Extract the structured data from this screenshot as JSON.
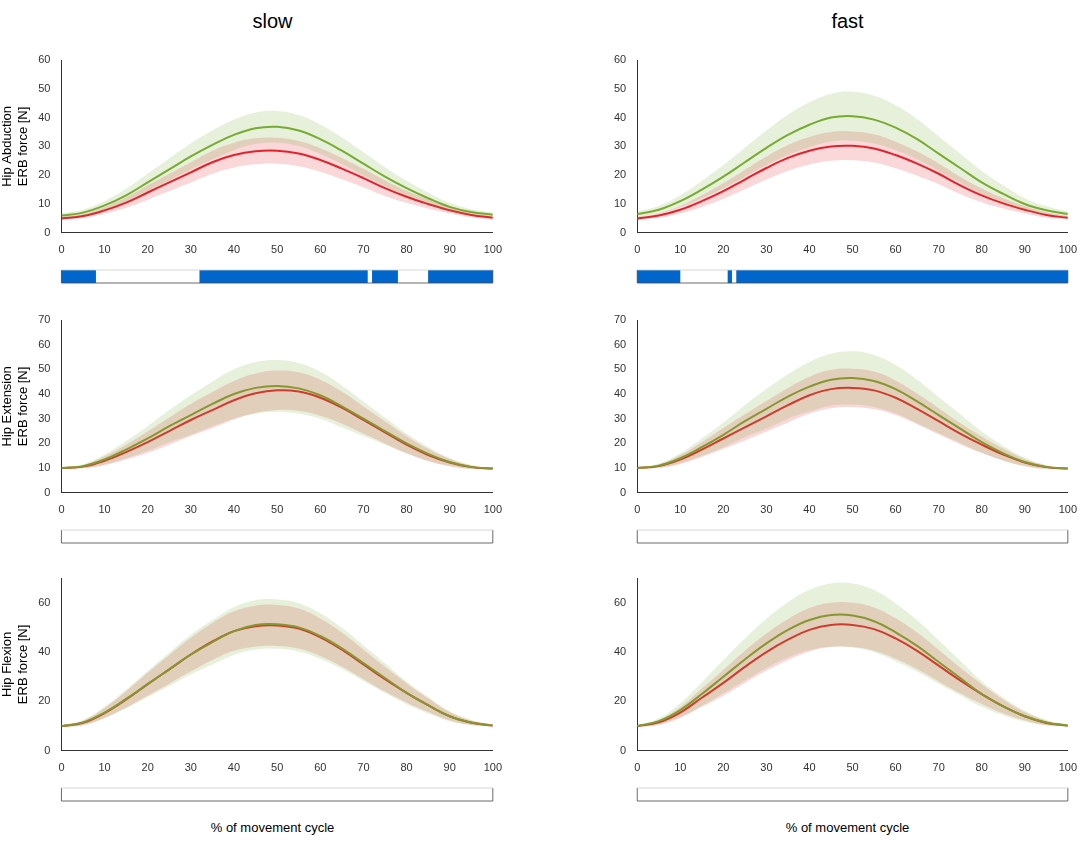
{
  "chart_data": [
    {
      "type": "line",
      "title": "slow",
      "y_label": [
        "Hip Abduction",
        "ERB force [N]"
      ],
      "xlim": [
        0,
        100
      ],
      "xticks": [
        0,
        10,
        20,
        30,
        40,
        50,
        60,
        70,
        80,
        90,
        100
      ],
      "ylim": [
        0,
        60
      ],
      "yticks": [
        0,
        10,
        20,
        30,
        40,
        50,
        60
      ],
      "grid": false,
      "x": [
        0,
        5,
        10,
        15,
        20,
        25,
        30,
        35,
        40,
        45,
        50,
        55,
        60,
        65,
        70,
        75,
        80,
        85,
        90,
        95,
        100
      ],
      "series": [
        {
          "color": "#77ac30",
          "values": [
            6,
            7,
            9.5,
            13,
            17.5,
            22,
            26.5,
            30.5,
            34,
            36.3,
            36.8,
            35.5,
            32.5,
            28.5,
            24,
            19.5,
            15.5,
            12,
            9,
            7.2,
            6.3
          ],
          "sd": [
            0.8,
            1,
            1.5,
            2.3,
            3,
            3.8,
            4.5,
            5,
            5.3,
            5.5,
            5.5,
            5.4,
            5.1,
            4.6,
            4,
            3.3,
            2.6,
            2,
            1.4,
            1,
            0.8
          ]
        },
        {
          "color": "#e3242b",
          "values": [
            5,
            5.8,
            7.8,
            10.5,
            14,
            17.5,
            21,
            24.5,
            27,
            28.3,
            28.5,
            27.5,
            25.3,
            22.3,
            19,
            15.5,
            12.5,
            10,
            7.8,
            6.2,
            5.2
          ],
          "sd": [
            0.5,
            0.7,
            1.2,
            1.8,
            2.5,
            3,
            3.5,
            4,
            4.3,
            4.5,
            4.5,
            4.4,
            4.1,
            3.7,
            3.2,
            2.7,
            2.1,
            1.6,
            1.1,
            0.8,
            0.6
          ]
        }
      ],
      "significance": [
        [
          0,
          8
        ],
        [
          32,
          71
        ],
        [
          72,
          78
        ],
        [
          85,
          100
        ]
      ]
    },
    {
      "type": "line",
      "title": "fast",
      "y_label": [],
      "xlim": [
        0,
        100
      ],
      "xticks": [
        0,
        10,
        20,
        30,
        40,
        50,
        60,
        70,
        80,
        90,
        100
      ],
      "ylim": [
        0,
        60
      ],
      "yticks": [
        0,
        10,
        20,
        30,
        40,
        50,
        60
      ],
      "grid": false,
      "x": [
        0,
        5,
        10,
        15,
        20,
        25,
        30,
        35,
        40,
        45,
        50,
        55,
        60,
        65,
        70,
        75,
        80,
        85,
        90,
        95,
        100
      ],
      "series": [
        {
          "color": "#77ac30",
          "values": [
            6.5,
            8,
            11,
            15,
            19.5,
            24.5,
            29.5,
            34,
            37.5,
            40,
            40.5,
            39.3,
            36.5,
            32.5,
            27.5,
            22.5,
            17.5,
            13.5,
            10,
            7.8,
            6.5
          ],
          "sd": [
            1,
            1.3,
            2,
            3,
            4,
            5,
            6,
            7,
            7.8,
            8.3,
            8.5,
            8.3,
            7.8,
            7,
            6,
            5,
            4,
            3,
            2,
            1.4,
            1
          ]
        },
        {
          "color": "#e3242b",
          "values": [
            5,
            6,
            8,
            11,
            14.5,
            18.5,
            22.5,
            26,
            28.5,
            30,
            30.2,
            29.3,
            27,
            24,
            20.5,
            16.5,
            13,
            10.2,
            8,
            6.2,
            5.2
          ],
          "sd": [
            0.6,
            0.8,
            1.3,
            2,
            2.7,
            3.4,
            4,
            4.5,
            4.8,
            5,
            5,
            4.9,
            4.6,
            4.2,
            3.6,
            3,
            2.4,
            1.8,
            1.3,
            0.9,
            0.6
          ]
        }
      ],
      "significance": [
        [
          0,
          10
        ],
        [
          21,
          22
        ],
        [
          23,
          100
        ]
      ]
    },
    {
      "type": "line",
      "y_label": [
        "Hip Extension",
        "ERB force [N]"
      ],
      "xlim": [
        0,
        100
      ],
      "xticks": [
        0,
        10,
        20,
        30,
        40,
        50,
        60,
        70,
        80,
        90,
        100
      ],
      "ylim": [
        0,
        70
      ],
      "yticks": [
        0,
        10,
        20,
        30,
        40,
        50,
        60,
        70
      ],
      "grid": false,
      "x": [
        0,
        5,
        10,
        15,
        20,
        25,
        30,
        35,
        40,
        45,
        50,
        55,
        60,
        65,
        70,
        75,
        80,
        85,
        90,
        95,
        100
      ],
      "series": [
        {
          "color": "#77ac30",
          "values": [
            10,
            10.8,
            13.5,
            17.5,
            22,
            27,
            31.5,
            36,
            40,
            42.5,
            43.3,
            42.3,
            39.5,
            35,
            30,
            25,
            20,
            15.8,
            12.5,
            10.5,
            9.8
          ],
          "sd": [
            0.3,
            0.8,
            2,
            3.5,
            5,
            6.5,
            8,
            9,
            10,
            10.5,
            10.5,
            10.3,
            9.5,
            8.5,
            7,
            5.5,
            4,
            2.8,
            1.6,
            0.8,
            0.3
          ]
        },
        {
          "color": "#e3242b",
          "values": [
            10,
            10.6,
            13,
            16.5,
            20.5,
            25,
            29.5,
            33.5,
            37.5,
            40.3,
            41.5,
            41,
            38.5,
            34.5,
            29.5,
            24.5,
            19.5,
            15.3,
            12.3,
            10.4,
            9.8
          ],
          "sd": [
            0.3,
            0.7,
            1.8,
            3,
            4.3,
            5.5,
            6.5,
            7.3,
            7.8,
            8,
            8,
            7.8,
            7.3,
            6.5,
            5.5,
            4.5,
            3.5,
            2.5,
            1.5,
            0.7,
            0.3
          ]
        }
      ],
      "significance": []
    },
    {
      "type": "line",
      "y_label": [],
      "xlim": [
        0,
        100
      ],
      "xticks": [
        0,
        10,
        20,
        30,
        40,
        50,
        60,
        70,
        80,
        90,
        100
      ],
      "ylim": [
        0,
        70
      ],
      "yticks": [
        0,
        10,
        20,
        30,
        40,
        50,
        60,
        70
      ],
      "grid": false,
      "x": [
        0,
        5,
        10,
        15,
        20,
        25,
        30,
        35,
        40,
        45,
        50,
        55,
        60,
        65,
        70,
        75,
        80,
        85,
        90,
        95,
        100
      ],
      "series": [
        {
          "color": "#77ac30",
          "values": [
            10,
            11,
            14,
            18.5,
            23.5,
            29,
            34,
            39,
            43,
            45.8,
            46.5,
            45.3,
            42,
            37,
            31.5,
            26,
            20.5,
            16,
            12.5,
            10.5,
            9.8
          ],
          "sd": [
            0.3,
            0.8,
            2,
            3.5,
            5,
            6.5,
            8,
            9,
            10,
            10.5,
            10.8,
            10.5,
            9.8,
            8.8,
            7.3,
            5.8,
            4.3,
            3,
            1.8,
            0.8,
            0.3
          ]
        },
        {
          "color": "#e3242b",
          "values": [
            10,
            10.8,
            13.5,
            17.5,
            22,
            26.5,
            31,
            35.5,
            39.5,
            42,
            42.5,
            41.5,
            38.5,
            34,
            29,
            24,
            19.5,
            15.5,
            12.3,
            10.4,
            9.8
          ],
          "sd": [
            0.3,
            0.7,
            1.8,
            3,
            4.2,
            5.3,
            6.2,
            7,
            7.5,
            7.8,
            7.8,
            7.6,
            7,
            6.2,
            5.3,
            4.3,
            3.3,
            2.4,
            1.4,
            0.7,
            0.3
          ]
        }
      ],
      "significance": []
    },
    {
      "type": "line",
      "y_label": [
        "Hip Flexion",
        "ERB force [N]"
      ],
      "x_label": "% of movement cycle",
      "xlim": [
        0,
        100
      ],
      "xticks": [
        0,
        10,
        20,
        30,
        40,
        50,
        60,
        70,
        80,
        90,
        100
      ],
      "ylim": [
        0,
        70
      ],
      "yticks": [
        0,
        20,
        40,
        60
      ],
      "grid": false,
      "x": [
        0,
        5,
        10,
        15,
        20,
        25,
        30,
        35,
        40,
        45,
        50,
        55,
        60,
        65,
        70,
        75,
        80,
        85,
        90,
        95,
        100
      ],
      "series": [
        {
          "color": "#77ac30",
          "values": [
            10,
            11.5,
            15.5,
            21,
            27,
            33,
            39,
            44,
            48.5,
            51,
            51.3,
            50,
            46.5,
            41.5,
            35.5,
            29.5,
            23.5,
            18.5,
            14,
            11.5,
            10.3
          ],
          "sd": [
            0.3,
            1,
            2.3,
            3.8,
            5.3,
            6.8,
            8,
            9,
            9.7,
            10,
            10,
            9.8,
            9.2,
            8.3,
            7.2,
            6,
            4.6,
            3.3,
            2,
            1,
            0.3
          ]
        },
        {
          "color": "#e3242b",
          "values": [
            10,
            11.3,
            15.3,
            20.8,
            27,
            33,
            39,
            44.3,
            48.5,
            50.5,
            50.8,
            49.5,
            46,
            41,
            35,
            29,
            23.5,
            18.5,
            14,
            11.4,
            10.2
          ],
          "sd": [
            0.3,
            0.9,
            2,
            3.3,
            4.6,
            5.8,
            6.8,
            7.5,
            8,
            8.3,
            8.3,
            8.1,
            7.6,
            6.9,
            6,
            5,
            3.9,
            2.8,
            1.7,
            0.9,
            0.3
          ]
        }
      ],
      "significance": []
    },
    {
      "type": "line",
      "y_label": [],
      "x_label": "% of movement cycle",
      "xlim": [
        0,
        100
      ],
      "xticks": [
        0,
        10,
        20,
        30,
        40,
        50,
        60,
        70,
        80,
        90,
        100
      ],
      "ylim": [
        0,
        70
      ],
      "yticks": [
        0,
        20,
        40,
        60
      ],
      "grid": false,
      "x": [
        0,
        5,
        10,
        15,
        20,
        25,
        30,
        35,
        40,
        45,
        50,
        55,
        60,
        65,
        70,
        75,
        80,
        85,
        90,
        95,
        100
      ],
      "series": [
        {
          "color": "#77ac30",
          "values": [
            10,
            12,
            16.5,
            23,
            30,
            37,
            43.5,
            49,
            53,
            55,
            54.8,
            52.5,
            48,
            42.5,
            36,
            29.5,
            23,
            18,
            14,
            11.5,
            10.2
          ],
          "sd": [
            0.3,
            1.2,
            2.8,
            4.8,
            6.7,
            8.5,
            10,
            11.2,
            12.2,
            12.8,
            13,
            12.6,
            11.7,
            10.4,
            8.8,
            7,
            5.2,
            3.6,
            2.2,
            1.1,
            0.3
          ]
        },
        {
          "color": "#e3242b",
          "values": [
            10,
            11.5,
            15.5,
            21.5,
            27.5,
            34,
            40,
            45,
            49,
            51,
            51,
            49.3,
            45.5,
            40.5,
            34.5,
            28.5,
            23,
            18,
            14,
            11.3,
            10.2
          ],
          "sd": [
            0.3,
            1,
            2.2,
            3.7,
            5.2,
            6.5,
            7.5,
            8.3,
            8.8,
            9,
            9,
            8.8,
            8.2,
            7.4,
            6.4,
            5.2,
            4,
            2.8,
            1.7,
            0.9,
            0.3
          ]
        }
      ],
      "significance": []
    }
  ]
}
